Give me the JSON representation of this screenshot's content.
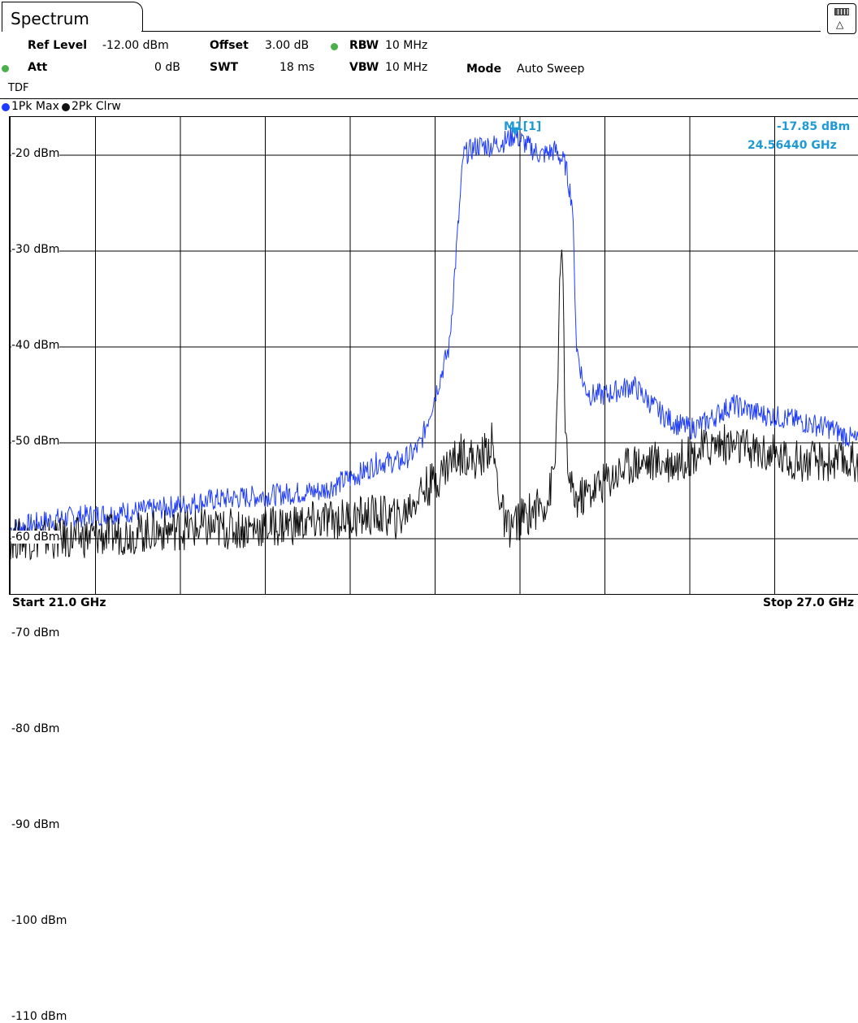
{
  "window": {
    "tab_title": "Spectrum",
    "corner_icon": "display-config-icon"
  },
  "settings": {
    "ref_level_label": "Ref Level",
    "ref_level_value": "-12.00 dBm",
    "offset_label": "Offset",
    "offset_value": "3.00 dB",
    "rbw_label": "RBW",
    "rbw_value": "10 MHz",
    "att_label": "Att",
    "att_value": "0 dB",
    "swt_label": "SWT",
    "swt_value": "18 ms",
    "vbw_label": "VBW",
    "vbw_value": "10 MHz",
    "mode_label": "Mode",
    "mode_value": "Auto Sweep",
    "tdf_label": "TDF"
  },
  "legend": {
    "trace1": "1Pk Max",
    "trace1_color": "#1e3cff",
    "trace2": "2Pk Clrw",
    "trace2_color": "#111111"
  },
  "marker": {
    "name": "M1[1]",
    "level": "-17.85 dBm",
    "frequency": "24.56440 GHz",
    "color": "#1e9ad6"
  },
  "footer": {
    "start": "Start 21.0 GHz",
    "stop": "Stop 27.0 GHz"
  },
  "chart_data": {
    "type": "line",
    "x_unit": "GHz",
    "y_unit": "dBm",
    "xlim": [
      21.0,
      27.0
    ],
    "ylim": [
      -113,
      -10
    ],
    "y_ticks": [
      -20,
      -30,
      -40,
      -50,
      -60,
      -70,
      -80,
      -90,
      -100,
      -110
    ],
    "y_tick_labels": [
      "-20 dBm",
      "-30 dBm",
      "-40 dBm",
      "-50 dBm",
      "-60 dBm",
      "-70 dBm",
      "-80 dBm",
      "-90 dBm",
      "-100 dBm",
      "-110 dBm"
    ],
    "grid": true,
    "series": [
      {
        "name": "1Pk Max",
        "x": [
          21.0,
          21.3,
          21.6,
          22.0,
          22.4,
          22.8,
          23.2,
          23.5,
          23.6,
          23.75,
          23.85,
          23.9,
          24.0,
          24.1,
          24.2,
          24.3,
          24.4,
          24.5,
          24.56,
          24.65,
          24.75,
          24.85,
          24.92,
          24.97,
          25.0,
          25.05,
          25.1,
          25.2,
          25.4,
          25.6,
          25.7,
          25.8,
          25.9,
          26.1,
          26.3,
          26.5,
          26.8,
          27.0
        ],
        "y": [
          -59,
          -58,
          -57.5,
          -57,
          -56,
          -55.5,
          -55,
          -53,
          -52,
          -52,
          -51,
          -50,
          -45,
          -40,
          -20,
          -19,
          -19,
          -18.5,
          -17.85,
          -19,
          -20,
          -19.5,
          -21,
          -25,
          -40,
          -44,
          -45,
          -45,
          -44,
          -47,
          -48,
          -48.5,
          -48,
          -46,
          -47,
          -47.5,
          -48.5,
          -50
        ]
      },
      {
        "name": "2Pk Clrw",
        "x": [
          21.0,
          21.4,
          21.8,
          22.2,
          22.6,
          23.0,
          23.3,
          23.6,
          23.75,
          23.9,
          24.0,
          24.1,
          24.2,
          24.3,
          24.4,
          24.45,
          24.5,
          24.6,
          24.7,
          24.8,
          24.85,
          24.88,
          24.9,
          24.92,
          24.96,
          25.0,
          25.2,
          25.4,
          25.7,
          26.0,
          26.3,
          26.6,
          27.0
        ],
        "y": [
          -60,
          -60,
          -59.5,
          -59,
          -59,
          -58.5,
          -58,
          -57.5,
          -58,
          -55,
          -54,
          -52,
          -51,
          -52,
          -50,
          -55,
          -59,
          -58,
          -57,
          -56,
          -52,
          -35,
          -29,
          -50,
          -55,
          -56,
          -54,
          -52,
          -52,
          -50,
          -51,
          -52,
          -52
        ]
      }
    ]
  }
}
